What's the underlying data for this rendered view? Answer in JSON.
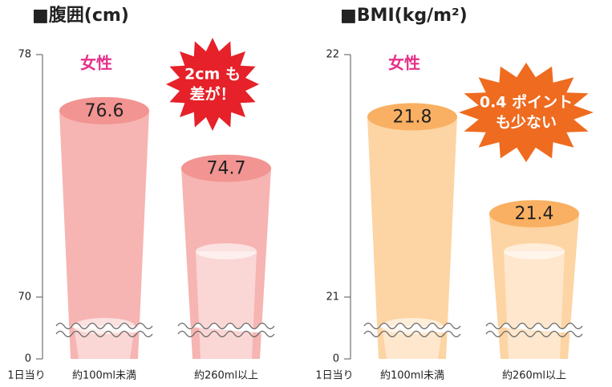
{
  "chart_data": [
    {
      "type": "bar",
      "title": "■腹囲(cm)",
      "x_label": "1日当り",
      "categories": [
        "約100ml未満",
        "約260ml以上"
      ],
      "series": [
        {
          "name": "女性",
          "color": "#f6b5b2",
          "top_color": "#f29492",
          "values": [
            76.6,
            74.7
          ]
        }
      ],
      "ylim": [
        0,
        78
      ],
      "axis_break": [
        0,
        70
      ],
      "yticks": [
        0,
        70,
        78
      ],
      "annotation": [
        "2cm も",
        "差が！"
      ],
      "annotation_color": "#e62129"
    },
    {
      "type": "bar",
      "title": "■BMI(kg/m²)",
      "x_label": "1日当り",
      "categories": [
        "約100ml未満",
        "約260ml以上"
      ],
      "series": [
        {
          "name": "女性",
          "color": "#fdd4a3",
          "top_color": "#f9b062",
          "values": [
            21.8,
            21.4
          ]
        }
      ],
      "ylim": [
        0,
        22
      ],
      "axis_break": [
        0,
        21
      ],
      "yticks": [
        0,
        21,
        22
      ],
      "annotation": [
        "0.4 ポイント",
        "も少ない"
      ],
      "annotation_color": "#ef6b1f"
    }
  ]
}
